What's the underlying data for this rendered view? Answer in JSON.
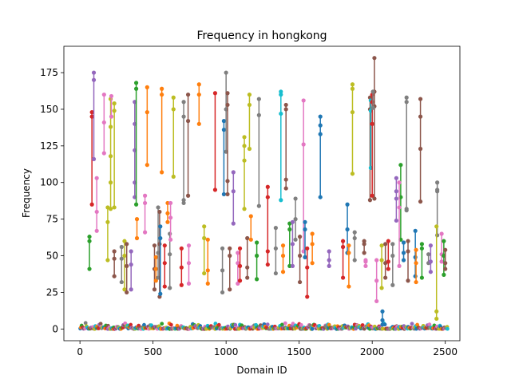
{
  "chart_data": {
    "type": "scatter",
    "title": "Frequency in hongkong",
    "xlabel": "Domain ID",
    "ylabel": "Frequency",
    "xlim": [
      -110,
      2600
    ],
    "ylim": [
      -8,
      193
    ],
    "xticks": [
      0,
      500,
      1000,
      1500,
      2000,
      2500
    ],
    "yticks": [
      0,
      25,
      50,
      75,
      100,
      125,
      150,
      175
    ],
    "grid": false,
    "legend": "none",
    "markers_connected_per_domain": true,
    "baseline_cluster": {
      "x_range": [
        0,
        2520
      ],
      "y_range": [
        0,
        6
      ]
    },
    "series": [
      {
        "color": "#d62728",
        "x": 82,
        "values": [
          148,
          145,
          85
        ]
      },
      {
        "color": "#9467bd",
        "x": 95,
        "values": [
          175,
          170,
          116
        ]
      },
      {
        "color": "#2ca02c",
        "x": 65,
        "values": [
          63,
          60,
          41
        ]
      },
      {
        "color": "#e377c2",
        "x": 115,
        "values": [
          103,
          80,
          67
        ]
      },
      {
        "color": "#e377c2",
        "x": 165,
        "values": [
          160,
          141,
          120
        ]
      },
      {
        "color": "#bcbd22",
        "x": 190,
        "values": [
          83,
          73,
          47
        ]
      },
      {
        "color": "#bcbd22",
        "x": 210,
        "values": [
          157,
          138,
          118,
          100,
          82
        ]
      },
      {
        "color": "#e377c2",
        "x": 215,
        "values": [
          159,
          145
        ]
      },
      {
        "color": "#bcbd22",
        "x": 235,
        "values": [
          154,
          149,
          83
        ]
      },
      {
        "color": "#8c564b",
        "x": 235,
        "values": [
          53,
          48,
          36
        ]
      },
      {
        "color": "#7f7f7f",
        "x": 285,
        "values": [
          56,
          48,
          32
        ]
      },
      {
        "color": "#bcbd22",
        "x": 305,
        "values": [
          60,
          50,
          27
        ]
      },
      {
        "color": "#8c564b",
        "x": 320,
        "values": [
          58,
          43,
          25
        ]
      },
      {
        "color": "#9467bd",
        "x": 350,
        "values": [
          53,
          44,
          27
        ]
      },
      {
        "color": "#9467bd",
        "x": 375,
        "values": [
          155,
          140,
          122,
          100,
          90
        ]
      },
      {
        "color": "#2ca02c",
        "x": 385,
        "values": [
          168,
          164,
          85
        ]
      },
      {
        "color": "#ff7f0e",
        "x": 390,
        "values": [
          75,
          62
        ]
      },
      {
        "color": "#e377c2",
        "x": 445,
        "values": [
          91,
          86,
          66
        ]
      },
      {
        "color": "#ff7f0e",
        "x": 460,
        "values": [
          165,
          148,
          112
        ]
      },
      {
        "color": "#8c564b",
        "x": 510,
        "values": [
          57,
          41,
          27
        ]
      },
      {
        "color": "#ff7f0e",
        "x": 520,
        "values": [
          49,
          41,
          33
        ]
      },
      {
        "color": "#7f7f7f",
        "x": 535,
        "values": [
          83,
          52,
          35
        ]
      },
      {
        "color": "#8c564b",
        "x": 545,
        "values": [
          80,
          58,
          22
        ]
      },
      {
        "color": "#1f77b4",
        "x": 550,
        "values": [
          70,
          62,
          24
        ]
      },
      {
        "color": "#ff7f0e",
        "x": 560,
        "values": [
          164,
          160,
          107
        ]
      },
      {
        "color": "#d62728",
        "x": 580,
        "values": [
          57,
          45,
          29
        ]
      },
      {
        "color": "#ff7f0e",
        "x": 600,
        "values": [
          86,
          79,
          73
        ]
      },
      {
        "color": "#7f7f7f",
        "x": 615,
        "values": [
          65,
          51,
          28
        ]
      },
      {
        "color": "#e377c2",
        "x": 620,
        "values": [
          86,
          76,
          61
        ]
      },
      {
        "color": "#bcbd22",
        "x": 640,
        "values": [
          158,
          150,
          104
        ]
      },
      {
        "color": "#d62728",
        "x": 695,
        "values": [
          55,
          42,
          30
        ]
      },
      {
        "color": "#7f7f7f",
        "x": 710,
        "values": [
          155,
          145,
          88,
          86
        ]
      },
      {
        "color": "#8c564b",
        "x": 740,
        "values": [
          160,
          142,
          91
        ]
      },
      {
        "color": "#e377c2",
        "x": 745,
        "values": [
          57,
          45,
          31
        ]
      },
      {
        "color": "#ff7f0e",
        "x": 815,
        "values": [
          167,
          160,
          140
        ]
      },
      {
        "color": "#bcbd22",
        "x": 850,
        "values": [
          70,
          62,
          38
        ]
      },
      {
        "color": "#ff7f0e",
        "x": 875,
        "values": [
          61,
          40,
          31
        ]
      },
      {
        "color": "#d62728",
        "x": 925,
        "values": [
          161,
          95
        ]
      },
      {
        "color": "#7f7f7f",
        "x": 975,
        "values": [
          55,
          40,
          25
        ]
      },
      {
        "color": "#1f77b4",
        "x": 985,
        "values": [
          142,
          136,
          92
        ]
      },
      {
        "color": "#7f7f7f",
        "x": 1000,
        "values": [
          175,
          150,
          121
        ]
      },
      {
        "color": "#8c564b",
        "x": 1010,
        "values": [
          161,
          153,
          101,
          92
        ]
      },
      {
        "color": "#8c564b",
        "x": 1025,
        "values": [
          55,
          50,
          27
        ]
      },
      {
        "color": "#9467bd",
        "x": 1050,
        "values": [
          107,
          94,
          72
        ]
      },
      {
        "color": "#e377c2",
        "x": 1080,
        "values": [
          52,
          45,
          31
        ]
      },
      {
        "color": "#d62728",
        "x": 1095,
        "values": [
          55,
          43,
          33
        ]
      },
      {
        "color": "#bcbd22",
        "x": 1125,
        "values": [
          131,
          125,
          115,
          82
        ]
      },
      {
        "color": "#8c564b",
        "x": 1145,
        "values": [
          62,
          42,
          35
        ]
      },
      {
        "color": "#bcbd22",
        "x": 1160,
        "values": [
          160,
          153,
          123
        ]
      },
      {
        "color": "#ff7f0e",
        "x": 1170,
        "values": [
          77,
          61
        ]
      },
      {
        "color": "#2ca02c",
        "x": 1210,
        "values": [
          59,
          50,
          34
        ]
      },
      {
        "color": "#7f7f7f",
        "x": 1225,
        "values": [
          157,
          146,
          84
        ]
      },
      {
        "color": "#d62728",
        "x": 1285,
        "values": [
          97,
          90,
          53,
          44
        ]
      },
      {
        "color": "#7f7f7f",
        "x": 1340,
        "values": [
          69,
          55,
          38
        ]
      },
      {
        "color": "#17becf",
        "x": 1375,
        "values": [
          162,
          160,
          147,
          88
        ]
      },
      {
        "color": "#ff7f0e",
        "x": 1390,
        "values": [
          57,
          50,
          39
        ]
      },
      {
        "color": "#8c564b",
        "x": 1410,
        "values": [
          153,
          150,
          102,
          96
        ]
      },
      {
        "color": "#2ca02c",
        "x": 1435,
        "values": [
          72,
          68,
          43
        ]
      },
      {
        "color": "#9467bd",
        "x": 1455,
        "values": [
          73,
          58,
          43
        ]
      },
      {
        "color": "#7f7f7f",
        "x": 1475,
        "values": [
          89,
          75,
          61
        ]
      },
      {
        "color": "#8c564b",
        "x": 1505,
        "values": [
          63,
          50,
          32
        ]
      },
      {
        "color": "#e377c2",
        "x": 1530,
        "values": [
          156,
          126,
          53
        ]
      },
      {
        "color": "#1f77b4",
        "x": 1540,
        "values": [
          73,
          68,
          49
        ]
      },
      {
        "color": "#d62728",
        "x": 1555,
        "values": [
          55,
          42,
          22
        ]
      },
      {
        "color": "#ff7f0e",
        "x": 1590,
        "values": [
          65,
          58,
          45
        ]
      },
      {
        "color": "#1f77b4",
        "x": 1645,
        "values": [
          145,
          139,
          133,
          90
        ]
      },
      {
        "color": "#9467bd",
        "x": 1705,
        "values": [
          53,
          47,
          43
        ]
      },
      {
        "color": "#d62728",
        "x": 1800,
        "values": [
          60,
          56,
          35
        ]
      },
      {
        "color": "#1f77b4",
        "x": 1830,
        "values": [
          85,
          68,
          52
        ]
      },
      {
        "color": "#ff7f0e",
        "x": 1840,
        "values": [
          57,
          52,
          29
        ]
      },
      {
        "color": "#bcbd22",
        "x": 1865,
        "values": [
          167,
          164,
          148,
          106
        ]
      },
      {
        "color": "#7f7f7f",
        "x": 1880,
        "values": [
          66,
          62,
          47
        ]
      },
      {
        "color": "#8c564b",
        "x": 1945,
        "values": [
          60,
          58,
          52
        ]
      },
      {
        "color": "#e377c2",
        "x": 1955,
        "values": [
          47,
          46,
          43
        ]
      },
      {
        "color": "#8c564b",
        "x": 1985,
        "values": [
          158,
          150,
          88
        ]
      },
      {
        "color": "#17becf",
        "x": 1990,
        "values": [
          156,
          149,
          110
        ]
      },
      {
        "color": "#d62728",
        "x": 2000,
        "values": [
          160,
          155,
          140,
          91
        ]
      },
      {
        "color": "#8c564b",
        "x": 2015,
        "values": [
          185,
          162,
          152,
          89
        ]
      },
      {
        "color": "#7f7f7f",
        "x": 2005,
        "values": [
          162,
          151
        ]
      },
      {
        "color": "#e377c2",
        "x": 2030,
        "values": [
          47,
          33,
          19
        ]
      },
      {
        "color": "#bcbd22",
        "x": 2065,
        "values": [
          57,
          47,
          28
        ]
      },
      {
        "color": "#1f77b4",
        "x": 2070,
        "values": [
          12,
          6,
          3
        ]
      },
      {
        "color": "#8c564b",
        "x": 2090,
        "values": [
          58,
          45,
          35
        ]
      },
      {
        "color": "#d62728",
        "x": 2110,
        "values": [
          60,
          46,
          41
        ]
      },
      {
        "color": "#7f7f7f",
        "x": 2140,
        "values": [
          58,
          50,
          30
        ]
      },
      {
        "color": "#9467bd",
        "x": 2165,
        "values": [
          103,
          94,
          89,
          74
        ]
      },
      {
        "color": "#2ca02c",
        "x": 2195,
        "values": [
          112,
          90,
          61
        ]
      },
      {
        "color": "#e377c2",
        "x": 2185,
        "values": [
          100,
          83,
          43
        ]
      },
      {
        "color": "#1f77b4",
        "x": 2215,
        "values": [
          59,
          52,
          47
        ]
      },
      {
        "color": "#7f7f7f",
        "x": 2235,
        "values": [
          158,
          155,
          82,
          81
        ]
      },
      {
        "color": "#8c564b",
        "x": 2245,
        "values": [
          60,
          53,
          33
        ]
      },
      {
        "color": "#1f77b4",
        "x": 2295,
        "values": [
          67,
          49,
          36
        ]
      },
      {
        "color": "#ff7f0e",
        "x": 2300,
        "values": [
          54,
          45,
          32
        ]
      },
      {
        "color": "#8c564b",
        "x": 2330,
        "values": [
          157,
          145,
          123,
          87
        ]
      },
      {
        "color": "#2ca02c",
        "x": 2340,
        "values": [
          58,
          55,
          35
        ]
      },
      {
        "color": "#7f7f7f",
        "x": 2385,
        "values": [
          51,
          45
        ]
      },
      {
        "color": "#9467bd",
        "x": 2400,
        "values": [
          57,
          46,
          39
        ]
      },
      {
        "color": "#7f7f7f",
        "x": 2445,
        "values": [
          100,
          95,
          94,
          64
        ]
      },
      {
        "color": "#bcbd22",
        "x": 2440,
        "values": [
          70,
          12,
          7
        ]
      },
      {
        "color": "#e377c2",
        "x": 2475,
        "values": [
          65,
          51,
          46
        ]
      },
      {
        "color": "#2ca02c",
        "x": 2490,
        "values": [
          60,
          50,
          37
        ]
      },
      {
        "color": "#8c564b",
        "x": 2500,
        "values": [
          54,
          45,
          41
        ]
      }
    ]
  }
}
